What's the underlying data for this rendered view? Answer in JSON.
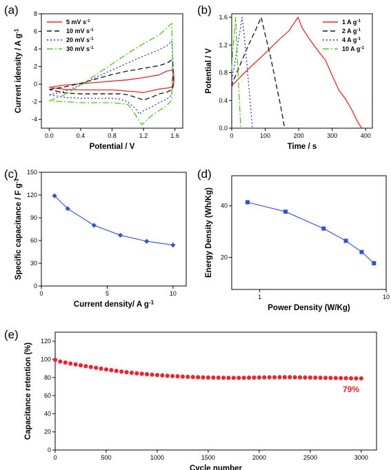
{
  "panels": [
    {
      "id": "a",
      "label": "(a)",
      "type": "line",
      "xlabel": "Potential / V",
      "ylabel_main": "Current idensity / A g",
      "ylabel_sup": "-1",
      "xlim": [
        -0.1,
        1.7
      ],
      "ylim": [
        -5,
        8
      ],
      "xticks": [
        0.0,
        0.4,
        0.8,
        1.2,
        1.6
      ],
      "xtick_labels": [
        "0.0",
        "0.4",
        "0.8",
        "1.2",
        "1.6"
      ],
      "yticks": [
        -4,
        -2,
        0,
        2,
        4,
        6,
        8
      ],
      "ytick_labels": [
        "-4",
        "-2",
        "0",
        "2",
        "4",
        "6",
        "8"
      ],
      "legend_position": "top-left",
      "series": [
        {
          "name_main": "5 mV s",
          "name_sup": "-1",
          "color": "#e8262d",
          "dash": "",
          "x": [
            0,
            0.2,
            0.4,
            0.6,
            0.8,
            1.0,
            1.2,
            1.4,
            1.5,
            1.58,
            1.59,
            1.58,
            1.5,
            1.4,
            1.3,
            1.2,
            1.1,
            1.0,
            0.9,
            0.8,
            0.6,
            0.4,
            0.2,
            0
          ],
          "y": [
            -0.35,
            -0.1,
            0.05,
            0.2,
            0.35,
            0.5,
            0.75,
            1.05,
            1.5,
            1.6,
            0.5,
            -0.3,
            -0.45,
            -0.55,
            -0.75,
            -0.95,
            -0.85,
            -0.8,
            -0.7,
            -0.65,
            -0.65,
            -0.65,
            -0.6,
            -0.35
          ]
        },
        {
          "name_main": "10 mV s",
          "name_sup": "-1",
          "color": "#111111",
          "dash": "7,4",
          "x": [
            0,
            0.2,
            0.4,
            0.6,
            0.8,
            1.0,
            1.2,
            1.4,
            1.5,
            1.57,
            1.58,
            1.57,
            1.5,
            1.4,
            1.3,
            1.2,
            1.1,
            1.0,
            0.9,
            0.8,
            0.6,
            0.4,
            0.2,
            0
          ],
          "y": [
            -0.6,
            -0.3,
            0.1,
            0.6,
            1.1,
            1.5,
            1.8,
            2.1,
            2.4,
            2.8,
            1.0,
            -0.6,
            -0.9,
            -1.1,
            -1.5,
            -1.8,
            -1.5,
            -1.2,
            -1.1,
            -1.1,
            -1.1,
            -1.1,
            -1.0,
            -0.6
          ]
        },
        {
          "name_main": "20 mV s",
          "name_sup": "-1",
          "color": "#2b2bd8",
          "dash": "2,3",
          "x": [
            0,
            0.2,
            0.4,
            0.6,
            0.8,
            1.0,
            1.2,
            1.4,
            1.5,
            1.56,
            1.58,
            1.56,
            1.5,
            1.4,
            1.3,
            1.2,
            1.15,
            1.1,
            1.0,
            0.9,
            0.8,
            0.6,
            0.4,
            0.2,
            0
          ],
          "y": [
            -1.2,
            -0.8,
            -0.1,
            0.8,
            1.6,
            2.4,
            3.2,
            3.9,
            4.4,
            4.9,
            2.0,
            -1.2,
            -1.7,
            -2.1,
            -2.6,
            -3.0,
            -3.4,
            -2.8,
            -2.0,
            -1.7,
            -1.6,
            -1.6,
            -1.6,
            -1.5,
            -1.2
          ]
        },
        {
          "name_main": "30 mV s",
          "name_sup": "-1",
          "color": "#55c227",
          "dash": "9,3,2,3",
          "x": [
            0,
            0.2,
            0.4,
            0.6,
            0.8,
            1.0,
            1.2,
            1.4,
            1.5,
            1.56,
            1.57,
            1.56,
            1.5,
            1.4,
            1.3,
            1.22,
            1.18,
            1.12,
            1.05,
            1.0,
            0.9,
            0.8,
            0.6,
            0.4,
            0.2,
            0
          ],
          "y": [
            -1.9,
            -1.2,
            -0.1,
            1.1,
            2.3,
            3.5,
            4.6,
            5.6,
            6.4,
            6.9,
            3.0,
            -1.8,
            -2.4,
            -3.0,
            -3.6,
            -4.3,
            -4.6,
            -3.8,
            -2.8,
            -2.3,
            -2.2,
            -2.1,
            -2.1,
            -2.1,
            -2.0,
            -1.9
          ]
        }
      ]
    },
    {
      "id": "b",
      "label": "(b)",
      "type": "line",
      "xlabel": "Time / s",
      "ylabel_main": "Potential / V",
      "ylabel_sup": "",
      "xlim": [
        0,
        420
      ],
      "ylim": [
        0,
        1.65
      ],
      "xticks": [
        0,
        100,
        200,
        300,
        400
      ],
      "xtick_labels": [
        "0",
        "100",
        "200",
        "300",
        "400"
      ],
      "yticks": [
        0.0,
        0.4,
        0.8,
        1.2,
        1.6
      ],
      "ytick_labels": [
        "0.0",
        "0.4",
        "0.8",
        "1.2",
        "1.6"
      ],
      "legend_position": "top-right",
      "series": [
        {
          "name_main": "1 A g",
          "name_sup": "-1",
          "color": "#e8262d",
          "dash": "",
          "x": [
            0,
            2,
            30,
            60,
            100,
            140,
            170,
            198,
            210,
            230,
            260,
            280,
            300,
            320,
            340,
            360,
            375,
            388
          ],
          "y": [
            0.58,
            0.62,
            0.76,
            0.9,
            1.08,
            1.27,
            1.4,
            1.6,
            1.45,
            1.3,
            1.1,
            0.98,
            0.76,
            0.55,
            0.42,
            0.25,
            0.1,
            0
          ]
        },
        {
          "name_main": "2 A g",
          "name_sup": "-1",
          "color": "#111111",
          "dash": "7,4",
          "x": [
            0,
            1,
            15,
            30,
            50,
            70,
            88,
            100,
            115,
            130,
            145,
            158
          ],
          "y": [
            0.6,
            0.64,
            0.8,
            0.97,
            1.2,
            1.4,
            1.6,
            1.35,
            1.05,
            0.7,
            0.35,
            0
          ]
        },
        {
          "name_main": "4 A g",
          "name_sup": "-1",
          "color": "#2b2bd8",
          "dash": "2,3",
          "x": [
            0,
            1,
            8,
            16,
            24,
            31,
            38,
            46,
            54,
            62
          ],
          "y": [
            0.65,
            0.72,
            0.9,
            1.15,
            1.38,
            1.6,
            1.3,
            0.9,
            0.45,
            0
          ]
        },
        {
          "name_main": "10 A g",
          "name_sup": "-1",
          "color": "#55c227",
          "dash": "9,3,2,3",
          "x": [
            0,
            0.5,
            4,
            8,
            12,
            15,
            19,
            23,
            27
          ],
          "y": [
            0.85,
            0.9,
            1.15,
            1.4,
            1.6,
            1.2,
            0.8,
            0.4,
            0
          ]
        }
      ]
    },
    {
      "id": "c",
      "label": "(c)",
      "type": "line",
      "xlabel_main": "Current density/ A g",
      "xlabel_sup": "-1",
      "ylabel_main": "Specific capacitance / F g",
      "ylabel_sup": "-1",
      "xlim": [
        0,
        11
      ],
      "ylim": [
        0,
        150
      ],
      "xticks": [
        0,
        5,
        10
      ],
      "xtick_labels": [
        "0",
        "5",
        "10"
      ],
      "yticks": [
        0,
        30,
        60,
        90,
        120,
        150
      ],
      "ytick_labels": [
        "0",
        "30",
        "60",
        "90",
        "120",
        "150"
      ],
      "marker": "diamond",
      "series": [
        {
          "color": "#2f52d6",
          "x": [
            1,
            2,
            4,
            6,
            8,
            10
          ],
          "y": [
            119,
            102,
            80,
            67,
            59,
            54
          ]
        }
      ]
    },
    {
      "id": "d",
      "label": "(d)",
      "type": "line",
      "scale": "log-log",
      "xlabel": "Power Density (W/Kg)",
      "ylabel": "Energy Density (Wh/Kg)",
      "xlim": [
        0.6,
        10
      ],
      "ylim": [
        13,
        60
      ],
      "xticks": [
        1,
        10
      ],
      "xtick_labels": [
        "1",
        "10"
      ],
      "yticks": [
        20,
        40
      ],
      "ytick_labels": [
        "20",
        "40"
      ],
      "marker": "square",
      "series": [
        {
          "color": "#2f52d6",
          "x": [
            0.8,
            1.6,
            3.2,
            4.8,
            6.4,
            8.0
          ],
          "y": [
            42,
            37,
            29.5,
            25,
            21.5,
            18.5
          ]
        }
      ]
    },
    {
      "id": "e",
      "label": "(e)",
      "type": "scatter",
      "xlabel": "Cycle number",
      "ylabel": "Capacitance retention (%)",
      "xlim": [
        0,
        3150
      ],
      "ylim": [
        0,
        130
      ],
      "xticks": [
        0,
        500,
        1000,
        1500,
        2000,
        2500,
        3000
      ],
      "xtick_labels": [
        "0",
        "500",
        "1000",
        "1500",
        "2000",
        "2500",
        "3000"
      ],
      "yticks": [
        0,
        20,
        40,
        60,
        80,
        100,
        120
      ],
      "ytick_labels": [
        "0",
        "20",
        "40",
        "60",
        "80",
        "100",
        "120"
      ],
      "annotation": "79%",
      "marker": "circle",
      "series": [
        {
          "color": "#e8262d",
          "x": [
            0,
            50,
            100,
            150,
            200,
            250,
            300,
            350,
            400,
            450,
            500,
            550,
            600,
            650,
            700,
            750,
            800,
            850,
            900,
            950,
            1000,
            1050,
            1100,
            1150,
            1200,
            1250,
            1300,
            1350,
            1400,
            1450,
            1500,
            1550,
            1600,
            1650,
            1700,
            1750,
            1800,
            1850,
            1900,
            1950,
            2000,
            2050,
            2100,
            2150,
            2200,
            2250,
            2300,
            2350,
            2400,
            2450,
            2500,
            2550,
            2600,
            2650,
            2700,
            2750,
            2800,
            2850,
            2900,
            2950,
            3000
          ],
          "y": [
            99.5,
            97.6,
            96.5,
            95.4,
            94.4,
            93.4,
            92.5,
            91.6,
            90.7,
            89.8,
            88.9,
            88.1,
            87.3,
            86.5,
            85.8,
            85.2,
            84.6,
            84.1,
            83.6,
            83.1,
            82.7,
            82.3,
            81.9,
            81.6,
            81.3,
            81.0,
            80.7,
            80.5,
            80.3,
            80.1,
            80.0,
            79.9,
            79.8,
            79.7,
            79.6,
            79.6,
            79.6,
            79.7,
            79.8,
            79.9,
            80.0,
            80.1,
            80.2,
            80.2,
            80.3,
            80.3,
            80.3,
            80.2,
            80.1,
            80.0,
            79.9,
            79.8,
            79.7,
            79.6,
            79.5,
            79.4,
            79.3,
            79.2,
            79.1,
            79.0,
            79.0
          ]
        }
      ]
    }
  ]
}
